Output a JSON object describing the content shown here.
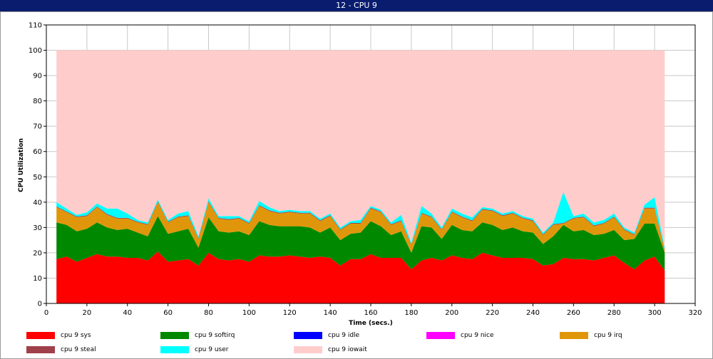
{
  "window_title": "12 - CPU 9",
  "chart_data": {
    "type": "area",
    "stacked": true,
    "title": "",
    "xlabel": "Time (secs.)",
    "ylabel": "CPU Utilization",
    "xlim": [
      0,
      320
    ],
    "ylim": [
      0,
      110
    ],
    "x_ticks": [
      0,
      20,
      40,
      60,
      80,
      100,
      120,
      140,
      160,
      180,
      200,
      220,
      240,
      260,
      280,
      300,
      320
    ],
    "y_ticks": [
      0,
      10,
      20,
      30,
      40,
      50,
      60,
      70,
      80,
      90,
      100,
      110
    ],
    "grid": true,
    "legend_position": "bottom",
    "x": [
      5,
      10,
      15,
      20,
      25,
      30,
      35,
      40,
      45,
      50,
      55,
      60,
      65,
      70,
      75,
      80,
      85,
      90,
      95,
      100,
      105,
      110,
      115,
      120,
      125,
      130,
      135,
      140,
      145,
      150,
      155,
      160,
      165,
      170,
      175,
      180,
      185,
      190,
      195,
      200,
      205,
      210,
      215,
      220,
      225,
      230,
      235,
      240,
      245,
      250,
      255,
      260,
      265,
      270,
      275,
      280,
      285,
      290,
      295,
      300,
      305
    ],
    "series": [
      {
        "name": "cpu 9 sys",
        "color": "#ff0000",
        "values": [
          17.5,
          18.5,
          16.5,
          18,
          19.5,
          18.5,
          18.5,
          18,
          18,
          17,
          20.5,
          16.5,
          17,
          17.5,
          15,
          20,
          17.5,
          17,
          17.5,
          16.5,
          19,
          18.5,
          18.5,
          19,
          18.5,
          18,
          18.5,
          18,
          15,
          17.5,
          17.5,
          19.5,
          18,
          18,
          18,
          13.5,
          17,
          18,
          17,
          19,
          18,
          17.5,
          20,
          19,
          18,
          18,
          18,
          17.5,
          15,
          15.5,
          18,
          17.5,
          17.5,
          17,
          18,
          19,
          16,
          13.5,
          17,
          18.5,
          13
        ]
      },
      {
        "name": "cpu 9 softirq",
        "color": "#008800",
        "values": [
          14.5,
          12.5,
          12,
          11.5,
          12.5,
          11.5,
          10.5,
          11.5,
          10,
          9.5,
          14,
          11,
          11.5,
          12,
          7,
          14,
          11,
          11,
          11,
          10.5,
          13.5,
          12.5,
          12,
          11.5,
          12,
          12,
          9.5,
          12,
          10,
          10,
          10.5,
          13,
          12.5,
          9,
          10.5,
          6.5,
          13.5,
          12,
          8.5,
          12,
          11,
          11,
          12,
          12,
          11,
          12,
          10.5,
          10.5,
          8.5,
          11,
          13,
          11,
          11.5,
          10,
          9.5,
          10,
          9,
          12,
          14.5,
          13,
          7
        ]
      },
      {
        "name": "cpu 9 idle",
        "color": "#0000ff",
        "values": [
          0,
          0,
          0,
          0,
          0,
          0,
          0,
          0,
          0,
          0,
          0,
          0,
          0,
          0,
          0,
          0,
          0,
          0,
          0,
          0,
          0,
          0,
          0,
          0,
          0,
          0,
          0,
          0,
          0,
          0,
          0,
          0,
          0,
          0,
          0,
          0,
          0,
          0,
          0,
          0,
          0,
          0,
          0,
          0,
          0,
          0,
          0,
          0,
          0,
          0,
          0,
          0,
          0,
          0,
          0,
          0,
          0,
          0,
          0,
          0,
          0
        ]
      },
      {
        "name": "cpu 9 nice",
        "color": "#ff00ff",
        "values": [
          0,
          0,
          0,
          0,
          0,
          0,
          0,
          0,
          0,
          0,
          0,
          0,
          0,
          0,
          0,
          0,
          0,
          0,
          0,
          0,
          0,
          0,
          0,
          0,
          0,
          0,
          0,
          0,
          0,
          0,
          0,
          0,
          0,
          0,
          0,
          0,
          0,
          0,
          0,
          0,
          0,
          0,
          0,
          0,
          0,
          0,
          0,
          0,
          0,
          0,
          0,
          0,
          0,
          0,
          0,
          0,
          0,
          0,
          0,
          0,
          0
        ]
      },
      {
        "name": "cpu 9 irq",
        "color": "#e0960b",
        "values": [
          6,
          5,
          5.5,
          5,
          6,
          5,
          4.5,
          4,
          4,
          4.5,
          5.5,
          4.5,
          5.5,
          5,
          3.5,
          6,
          5,
          5,
          5,
          4.5,
          6,
          5.5,
          5,
          5.5,
          5,
          5.5,
          4.5,
          4.5,
          4,
          4,
          3.5,
          5,
          5.5,
          4,
          4,
          3,
          5,
          4,
          3.5,
          5,
          5,
          4,
          5,
          5.5,
          5.5,
          5.5,
          5,
          4.5,
          3.5,
          4.5,
          0.5,
          5,
          5,
          3.5,
          4,
          5,
          4,
          1.5,
          6,
          6,
          1
        ]
      },
      {
        "name": "cpu 9 steal",
        "color": "#a0404a",
        "values": [
          0.3,
          0.3,
          0.3,
          0.3,
          0.3,
          0.3,
          0.3,
          0.3,
          0.3,
          0.3,
          0.3,
          0.3,
          0.3,
          0.3,
          0.3,
          0.3,
          0.3,
          0.3,
          0.3,
          0.3,
          0.3,
          0.3,
          0.3,
          0.3,
          0.3,
          0.3,
          0.3,
          0.3,
          0.3,
          0.3,
          0.3,
          0.3,
          0.3,
          0.3,
          0.3,
          0.3,
          0.3,
          0.3,
          0.3,
          0.3,
          0.3,
          0.3,
          0.3,
          0.3,
          0.3,
          0.3,
          0.3,
          0.3,
          0.3,
          0.3,
          0.3,
          0.3,
          0.3,
          0.3,
          0.3,
          0.3,
          0.3,
          0.3,
          0.3,
          0.3,
          0.3
        ]
      },
      {
        "name": "cpu 9 user",
        "color": "#00ffff",
        "values": [
          1.7,
          1.2,
          0.7,
          1.2,
          1.2,
          2.2,
          3.7,
          1.7,
          0.7,
          0.7,
          0.7,
          0.7,
          1.2,
          1.7,
          0.7,
          1.2,
          0.7,
          1.2,
          0.7,
          0.7,
          1.7,
          1.2,
          0.7,
          0.7,
          0.7,
          0.7,
          0.7,
          0.7,
          0.7,
          0.7,
          1.2,
          0.7,
          0.7,
          0.7,
          2.2,
          0.7,
          2.7,
          1.2,
          0.7,
          1.2,
          1.2,
          1.2,
          0.7,
          0.7,
          0.7,
          0.7,
          0.7,
          0.7,
          0.7,
          0.7,
          12.2,
          0.7,
          1.2,
          1.2,
          1.2,
          1.2,
          0.7,
          0.7,
          1.2,
          4.2,
          0.7
        ]
      },
      {
        "name": "cpu 9 iowait",
        "color": "#ffcccc",
        "values": [
          60,
          62.5,
          65,
          64,
          60.5,
          62.5,
          62.5,
          64.5,
          67,
          68,
          59,
          67,
          64.5,
          63.5,
          73.5,
          58.5,
          65.5,
          65.5,
          65.5,
          67.5,
          59.5,
          62,
          63.5,
          63,
          63.5,
          63.5,
          66.5,
          64.5,
          70,
          67.5,
          67,
          61.5,
          63,
          68,
          65,
          76,
          61.5,
          64.5,
          70,
          62.5,
          64.5,
          66,
          62,
          62.5,
          64.5,
          63.5,
          65.5,
          66.5,
          72,
          68,
          56,
          65.5,
          64.5,
          68,
          67,
          64.5,
          70,
          72,
          61,
          58,
          78
        ]
      }
    ]
  }
}
